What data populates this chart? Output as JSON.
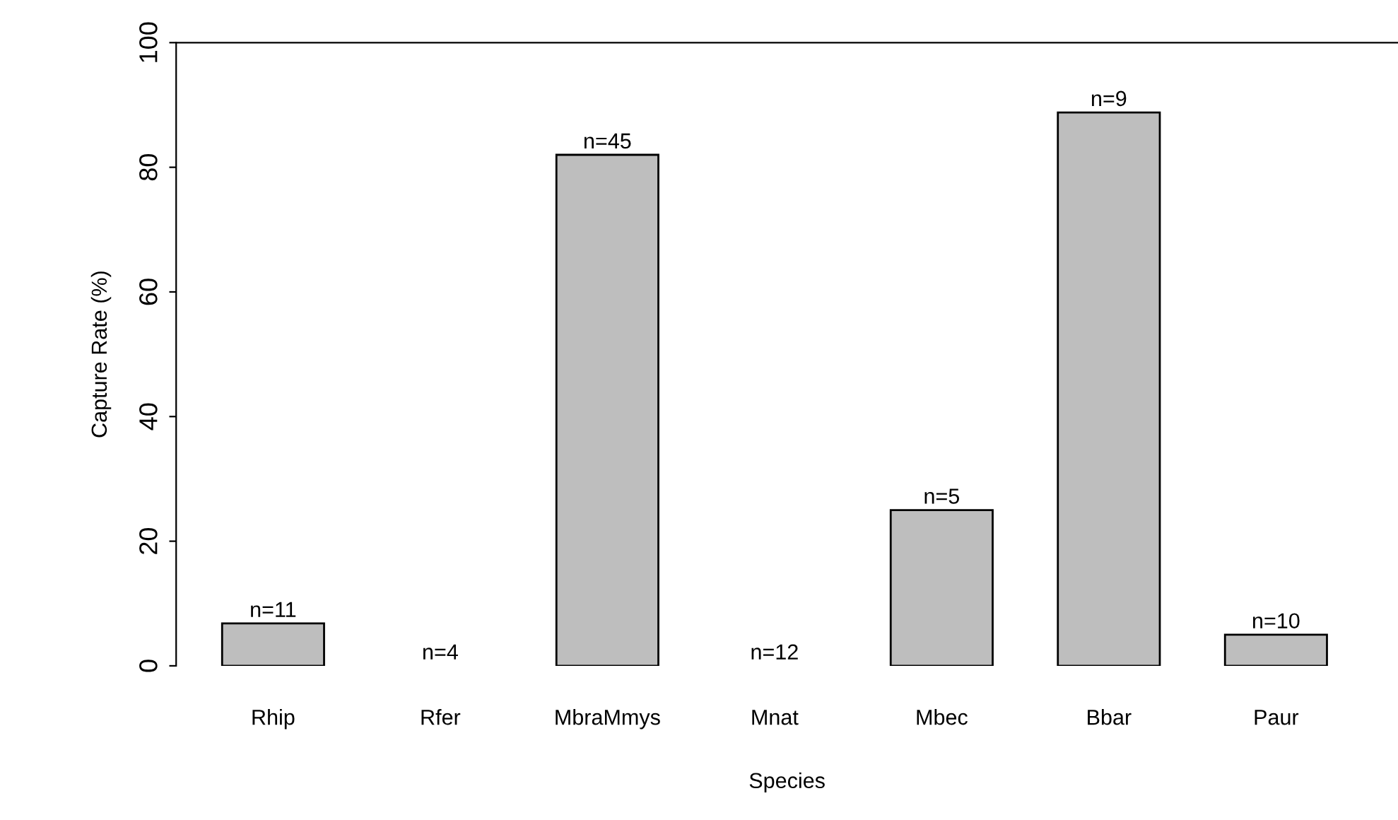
{
  "chart_data": {
    "type": "bar",
    "xlabel": "Species",
    "ylabel": "Capture Rate (%)",
    "categories": [
      "Rhip",
      "Rfer",
      "MbraMmys",
      "Mnat",
      "Mbec",
      "Bbar",
      "Paur"
    ],
    "values": [
      6.8,
      0,
      82,
      0,
      25,
      88.8,
      5
    ],
    "annotations": [
      {
        "text": "n=11",
        "x": "Rhip",
        "y": 6.8
      },
      {
        "text": "n=4",
        "x": "Rfer",
        "y": 0
      },
      {
        "text": "n=45",
        "x": "MbraMmys",
        "y": 82
      },
      {
        "text": "n=12",
        "x": "Mnat",
        "y": 0
      },
      {
        "text": "n=5",
        "x": "Mbec",
        "y": 25
      },
      {
        "text": "n=9",
        "x": "Bbar",
        "y": 88.8
      },
      {
        "text": "n=10",
        "x": "Paur",
        "y": 5
      }
    ],
    "color": "#bebebe",
    "ylim": [
      0,
      100
    ],
    "yticks": [
      0,
      20,
      40,
      60,
      80,
      100
    ],
    "grid": false
  }
}
